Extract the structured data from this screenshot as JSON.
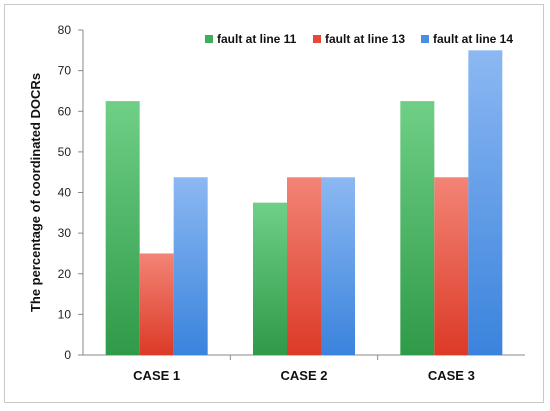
{
  "chart_data": {
    "type": "bar",
    "title": "",
    "xlabel": "",
    "ylabel": "The percentage of coordinated DOCRs",
    "categories": [
      "CASE 1",
      "CASE 2",
      "CASE 3"
    ],
    "series": [
      {
        "name": "fault at line 11",
        "color": "#3fae5a",
        "values": [
          62.5,
          37.5,
          62.5
        ]
      },
      {
        "name": "fault at line 13",
        "color": "#e8483a",
        "values": [
          25,
          43.75,
          43.75
        ]
      },
      {
        "name": "fault at line 14",
        "color": "#4a90e2",
        "values": [
          43.75,
          43.75,
          75
        ]
      }
    ],
    "ylim": [
      0,
      80
    ],
    "yticks": [
      0,
      10,
      20,
      30,
      40,
      50,
      60,
      70,
      80
    ],
    "grid": false,
    "legend_position": "top-right"
  }
}
